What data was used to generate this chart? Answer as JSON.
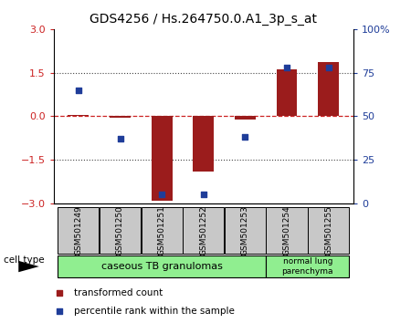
{
  "title": "GDS4256 / Hs.264750.0.A1_3p_s_at",
  "samples": [
    "GSM501249",
    "GSM501250",
    "GSM501251",
    "GSM501252",
    "GSM501253",
    "GSM501254",
    "GSM501255"
  ],
  "transformed_count": [
    0.05,
    -0.05,
    -2.9,
    -1.9,
    -0.12,
    1.6,
    1.85
  ],
  "percentile_rank": [
    65,
    37,
    5,
    5,
    38,
    78,
    78
  ],
  "ylim_left": [
    -3,
    3
  ],
  "ylim_right": [
    0,
    100
  ],
  "yticks_left": [
    -3,
    -1.5,
    0,
    1.5,
    3
  ],
  "yticks_right": [
    0,
    25,
    50,
    75,
    100
  ],
  "bar_color": "#9B1C1C",
  "dot_color": "#1F3D99",
  "cell_type_group1": "caseous TB granulomas",
  "cell_type_group2": "normal lung\nparenchyma",
  "cell_type_bg": "#90EE90",
  "sample_bg": "#c8c8c8",
  "hline_color": "#cc2222",
  "dotted_line_color": "#444444",
  "bar_width": 0.5,
  "legend_red": "transformed count",
  "legend_blue": "percentile rank within the sample"
}
